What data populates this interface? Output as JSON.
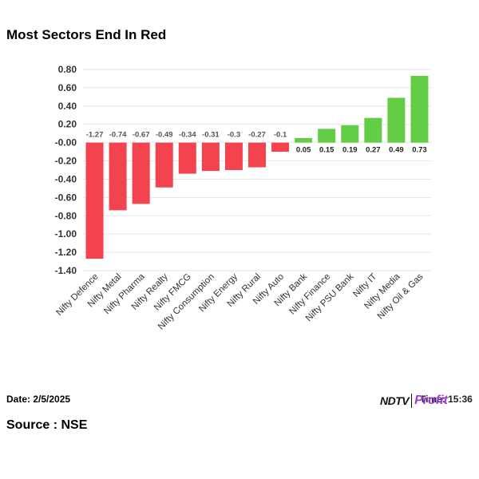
{
  "chart_data": {
    "type": "bar",
    "title": "Most Sectors End In Red",
    "categories": [
      "Nifty Defence",
      "Nifty Metal",
      "Nifty Pharma",
      "Nifty Realty",
      "Nifty FMCG",
      "Nifty Consumption",
      "Nifty Energy",
      "Nifty Rural",
      "Nifty Auto",
      "Nifty Bank",
      "Nifty Finance",
      "Nifty PSU Bank",
      "Nifty IT",
      "Nifty Media",
      "Nifty Oil & Gas"
    ],
    "values": [
      -1.27,
      -0.74,
      -0.67,
      -0.49,
      -0.34,
      -0.31,
      -0.3,
      -0.27,
      -0.1,
      0.05,
      0.15,
      0.19,
      0.27,
      0.49,
      0.73
    ],
    "value_labels": [
      "-1.27",
      "-0.74",
      "-0.67",
      "-0.49",
      "-0.34",
      "-0.31",
      "-0.3",
      "-0.27",
      "-0.1",
      "0.05",
      "0.15",
      "0.19",
      "0.27",
      "0.49",
      "0.73"
    ],
    "ylim": [
      -1.4,
      0.8
    ],
    "yticks": [
      0.8,
      0.6,
      0.4,
      0.2,
      0.0,
      -0.2,
      -0.4,
      -0.6,
      -0.8,
      -1.0,
      -1.2,
      -1.4
    ],
    "ytick_labels": [
      "0.80",
      "0.60",
      "0.40",
      "0.20",
      "-0.00",
      "-0.20",
      "-0.40",
      "-0.60",
      "-0.80",
      "-1.00",
      "-1.20",
      "-1.40"
    ],
    "xlabel": "",
    "ylabel": "",
    "grid": true,
    "colors": {
      "negative": "#f2434e",
      "positive": "#63cd45",
      "grid": "#e6e6e6"
    }
  },
  "footer": {
    "date": "Date: 2/5/2025",
    "time": "Time: 15:36",
    "source": "Source : NSE",
    "logo_ndtv": "NDTV",
    "logo_profit": "Profit"
  }
}
